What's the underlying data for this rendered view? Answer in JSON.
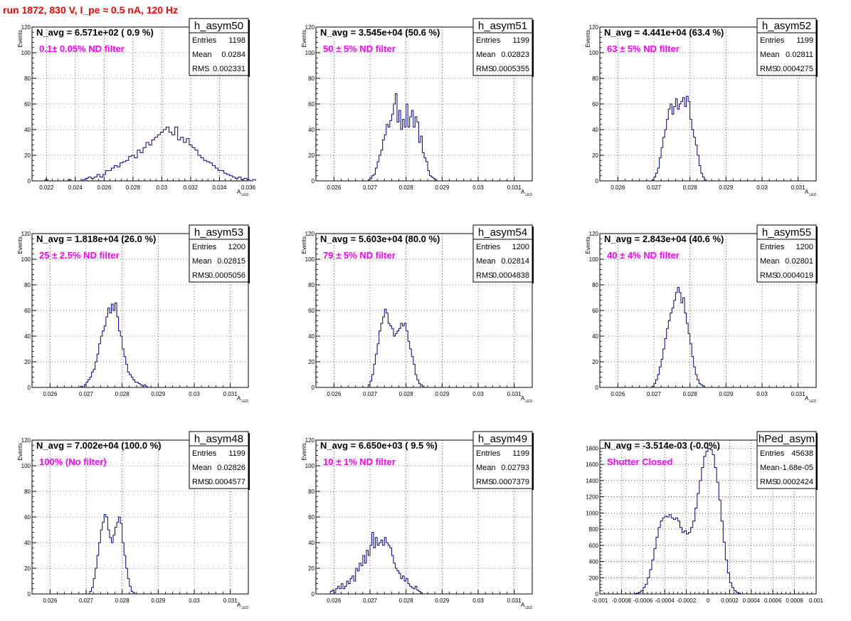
{
  "run_title": "run 1872,   830 V, I_pe ≈ 0.5 nA, 120 Hz",
  "colors": {
    "histogram": "#000080",
    "annotation": "#ff00ff",
    "title": "#ff0000",
    "grid": "#000000"
  },
  "chart_data": [
    {
      "type": "histogram",
      "hist_name": "h_asym50",
      "navg_text": "N_avg = 6.571e+02 ( 0.9 %)",
      "filter_label": "0.1± 0.05% ND filter",
      "stats": [
        {
          "label": "Entries",
          "value": "1198"
        },
        {
          "label": "Mean",
          "value": "0.0284"
        },
        {
          "label": "RMS",
          "value": "0.002331"
        }
      ],
      "ylabel": "Events",
      "xlabel": "A",
      "xlabel_sub": "LED",
      "xlim": [
        0.021,
        0.036
      ],
      "ylim": [
        0,
        120
      ],
      "xticks": [
        0.022,
        0.024,
        0.026,
        0.028,
        0.03,
        0.032,
        0.034,
        0.036
      ],
      "xtick_labels": [
        "0.022",
        "0.024",
        "0.026",
        "0.028",
        "0.03",
        "0.032",
        "0.034",
        "0.036"
      ],
      "yticks": [
        0,
        20,
        40,
        60,
        80,
        100,
        120
      ],
      "ytick_labels": [
        "0",
        "20",
        "40",
        "60",
        "80",
        "100",
        "120"
      ],
      "bins": {
        "start": 0.0215,
        "width": 0.0002,
        "values": [
          0,
          0,
          1,
          0,
          0,
          0,
          0,
          0,
          0,
          0,
          1,
          0,
          0,
          0,
          0,
          1,
          2,
          3,
          2,
          3,
          5,
          3,
          5,
          8,
          8,
          10,
          12,
          11,
          14,
          15,
          16,
          19,
          20,
          18,
          24,
          22,
          26,
          30,
          28,
          32,
          34,
          36,
          38,
          40,
          42,
          38,
          36,
          42,
          32,
          34,
          30,
          33,
          28,
          26,
          24,
          20,
          18,
          16,
          15,
          14,
          12,
          10,
          8,
          8,
          6,
          5,
          4,
          3,
          2,
          3,
          1,
          2,
          1,
          0,
          1
        ]
      }
    },
    {
      "type": "histogram",
      "hist_name": "h_asym51",
      "navg_text": "N_avg = 3.545e+04 (50.6 %)",
      "filter_label": "50 ± 5% ND filter",
      "stats": [
        {
          "label": "Entries",
          "value": "1199"
        },
        {
          "label": "Mean",
          "value": "0.02823"
        },
        {
          "label": "RMS",
          "value": "0.0005355"
        }
      ],
      "ylabel": "Events",
      "xlabel": "A",
      "xlabel_sub": "LED",
      "xlim": [
        0.0255,
        0.0315
      ],
      "ylim": [
        0,
        120
      ],
      "xticks": [
        0.026,
        0.027,
        0.028,
        0.029,
        0.03,
        0.031
      ],
      "xtick_labels": [
        "0.026",
        "0.027",
        "0.028",
        "0.029",
        "0.03",
        "0.031"
      ],
      "yticks": [
        0,
        20,
        40,
        60,
        80,
        100,
        120
      ],
      "ytick_labels": [
        "0",
        "20",
        "40",
        "60",
        "80",
        "100",
        "120"
      ],
      "bins": {
        "start": 0.02695,
        "width": 5e-05,
        "values": [
          1,
          2,
          4,
          5,
          10,
          15,
          20,
          24,
          32,
          36,
          44,
          42,
          47,
          52,
          60,
          68,
          46,
          55,
          40,
          48,
          42,
          60,
          42,
          50,
          55,
          42,
          50,
          46,
          30,
          35,
          22,
          18,
          15,
          8,
          4,
          3,
          2,
          1,
          0
        ]
      }
    },
    {
      "type": "histogram",
      "hist_name": "h_asym52",
      "navg_text": "N_avg = 4.441e+04 (63.4 %)",
      "filter_label": "63 ± 5% ND filter",
      "stats": [
        {
          "label": "Entries",
          "value": "1199"
        },
        {
          "label": "Mean",
          "value": "0.02811"
        },
        {
          "label": "RMS",
          "value": "0.0004275"
        }
      ],
      "ylabel": "Events",
      "xlabel": "A",
      "xlabel_sub": "LED",
      "xlim": [
        0.0255,
        0.0315
      ],
      "ylim": [
        0,
        120
      ],
      "xticks": [
        0.026,
        0.027,
        0.028,
        0.029,
        0.03,
        0.031
      ],
      "xtick_labels": [
        "0.026",
        "0.027",
        "0.028",
        "0.029",
        "0.03",
        "0.031"
      ],
      "yticks": [
        0,
        20,
        40,
        60,
        80,
        100,
        120
      ],
      "ytick_labels": [
        "0",
        "20",
        "40",
        "60",
        "80",
        "100",
        "120"
      ],
      "bins": {
        "start": 0.02695,
        "width": 5e-05,
        "values": [
          1,
          3,
          6,
          10,
          18,
          26,
          34,
          40,
          48,
          56,
          60,
          52,
          58,
          64,
          56,
          60,
          62,
          65,
          58,
          66,
          62,
          48,
          40,
          34,
          28,
          20,
          12,
          6,
          3,
          1,
          0
        ]
      }
    },
    {
      "type": "histogram",
      "hist_name": "h_asym53",
      "navg_text": "N_avg = 1.818e+04 (26.0 %)",
      "filter_label": "25 ± 2.5% ND filter",
      "stats": [
        {
          "label": "Entries",
          "value": "1200"
        },
        {
          "label": "Mean",
          "value": "0.02815"
        },
        {
          "label": "RMS",
          "value": "0.0005056"
        }
      ],
      "ylabel": "Events",
      "xlabel": "A",
      "xlabel_sub": "LED",
      "xlim": [
        0.0255,
        0.0315
      ],
      "ylim": [
        0,
        120
      ],
      "xticks": [
        0.026,
        0.027,
        0.028,
        0.029,
        0.03,
        0.031
      ],
      "xtick_labels": [
        "0.026",
        "0.027",
        "0.028",
        "0.029",
        "0.03",
        "0.031"
      ],
      "yticks": [
        0,
        20,
        40,
        60,
        80,
        100,
        120
      ],
      "ytick_labels": [
        "0",
        "20",
        "40",
        "60",
        "80",
        "100",
        "120"
      ],
      "bins": {
        "start": 0.02685,
        "width": 5e-05,
        "values": [
          1,
          0,
          2,
          4,
          6,
          8,
          12,
          14,
          20,
          26,
          34,
          40,
          44,
          48,
          55,
          62,
          58,
          65,
          60,
          66,
          55,
          44,
          40,
          30,
          24,
          18,
          12,
          10,
          8,
          6,
          4,
          4,
          3,
          2,
          1,
          2,
          1
        ]
      }
    },
    {
      "type": "histogram",
      "hist_name": "h_asym54",
      "navg_text": "N_avg = 5.603e+04 (80.0 %)",
      "filter_label": "79 ± 5% ND filter",
      "stats": [
        {
          "label": "Entries",
          "value": "1200"
        },
        {
          "label": "Mean",
          "value": "0.02814"
        },
        {
          "label": "RMS",
          "value": "0.0004838"
        }
      ],
      "ylabel": "Events",
      "xlabel": "A",
      "xlabel_sub": "LED",
      "xlim": [
        0.0255,
        0.0315
      ],
      "ylim": [
        0,
        120
      ],
      "xticks": [
        0.026,
        0.027,
        0.028,
        0.029,
        0.03,
        0.031
      ],
      "xtick_labels": [
        "0.026",
        "0.027",
        "0.028",
        "0.029",
        "0.03",
        "0.031"
      ],
      "yticks": [
        0,
        20,
        40,
        60,
        80,
        100,
        120
      ],
      "ytick_labels": [
        "0",
        "20",
        "40",
        "60",
        "80",
        "100",
        "120"
      ],
      "bins": {
        "start": 0.02695,
        "width": 5e-05,
        "values": [
          2,
          5,
          10,
          18,
          26,
          34,
          44,
          50,
          55,
          61,
          58,
          50,
          48,
          46,
          40,
          42,
          44,
          46,
          50,
          48,
          50,
          44,
          36,
          30,
          24,
          18,
          10,
          6,
          3,
          2,
          1
        ]
      }
    },
    {
      "type": "histogram",
      "hist_name": "h_asym55",
      "navg_text": "N_avg = 2.843e+04 (40.6 %)",
      "filter_label": "40 ± 4% ND filter",
      "stats": [
        {
          "label": "Entries",
          "value": "1200"
        },
        {
          "label": "Mean",
          "value": "0.02801"
        },
        {
          "label": "RMS",
          "value": "0.0004019"
        }
      ],
      "ylabel": "Events",
      "xlabel": "A",
      "xlabel_sub": "LED",
      "xlim": [
        0.0255,
        0.0315
      ],
      "ylim": [
        0,
        120
      ],
      "xticks": [
        0.026,
        0.027,
        0.028,
        0.029,
        0.03,
        0.031
      ],
      "xtick_labels": [
        "0.026",
        "0.027",
        "0.028",
        "0.029",
        "0.03",
        "0.031"
      ],
      "yticks": [
        0,
        20,
        40,
        60,
        80,
        100,
        120
      ],
      "ytick_labels": [
        "0",
        "20",
        "40",
        "60",
        "80",
        "100",
        "120"
      ],
      "bins": {
        "start": 0.02695,
        "width": 5e-05,
        "values": [
          1,
          3,
          6,
          10,
          16,
          22,
          30,
          38,
          46,
          52,
          58,
          62,
          68,
          74,
          78,
          74,
          66,
          70,
          58,
          50,
          42,
          34,
          24,
          16,
          10,
          6,
          3,
          2,
          1,
          0
        ]
      }
    },
    {
      "type": "histogram",
      "hist_name": "h_asym48",
      "navg_text": "N_avg = 7.002e+04 (100.0 %)",
      "filter_label": "100% (No filter)",
      "stats": [
        {
          "label": "Entries",
          "value": "1199"
        },
        {
          "label": "Mean",
          "value": "0.02826"
        },
        {
          "label": "RMS",
          "value": "0.0004577"
        }
      ],
      "ylabel": "Events",
      "xlabel": "A",
      "xlabel_sub": "LED",
      "xlim": [
        0.0255,
        0.0315
      ],
      "ylim": [
        0,
        120
      ],
      "xticks": [
        0.026,
        0.027,
        0.028,
        0.029,
        0.03,
        0.031
      ],
      "xtick_labels": [
        "0.026",
        "0.027",
        "0.028",
        "0.029",
        "0.03",
        "0.031"
      ],
      "yticks": [
        0,
        20,
        40,
        60,
        80,
        100,
        120
      ],
      "ytick_labels": [
        "0",
        "20",
        "40",
        "60",
        "80",
        "100",
        "120"
      ],
      "bins": {
        "start": 0.0271,
        "width": 5e-05,
        "values": [
          2,
          5,
          12,
          20,
          30,
          40,
          50,
          56,
          62,
          60,
          50,
          44,
          40,
          46,
          52,
          56,
          60,
          55,
          40,
          30,
          20,
          12,
          6,
          2,
          1
        ]
      }
    },
    {
      "type": "histogram",
      "hist_name": "h_asym49",
      "navg_text": "N_avg = 6.650e+03 ( 9.5 %)",
      "filter_label": "10 ± 1% ND filter",
      "stats": [
        {
          "label": "Entries",
          "value": "1199"
        },
        {
          "label": "Mean",
          "value": "0.02793"
        },
        {
          "label": "RMS",
          "value": "0.0007379"
        }
      ],
      "ylabel": "Events",
      "xlabel": "A",
      "xlabel_sub": "LED",
      "xlim": [
        0.0255,
        0.0315
      ],
      "ylim": [
        0,
        120
      ],
      "xticks": [
        0.026,
        0.027,
        0.028,
        0.029,
        0.03,
        0.031
      ],
      "xtick_labels": [
        "0.026",
        "0.027",
        "0.028",
        "0.029",
        "0.03",
        "0.031"
      ],
      "yticks": [
        0,
        20,
        40,
        60,
        80,
        100,
        120
      ],
      "ytick_labels": [
        "0",
        "20",
        "40",
        "60",
        "80",
        "100",
        "120"
      ],
      "bins": {
        "start": 0.0259,
        "width": 5e-05,
        "values": [
          2,
          3,
          1,
          4,
          6,
          4,
          8,
          4,
          6,
          10,
          8,
          12,
          14,
          10,
          20,
          18,
          24,
          22,
          30,
          24,
          34,
          30,
          38,
          48,
          36,
          44,
          38,
          40,
          42,
          38,
          44,
          40,
          38,
          36,
          30,
          24,
          20,
          18,
          16,
          12,
          14,
          10,
          12,
          8,
          6,
          5,
          4,
          6,
          3,
          2,
          1
        ]
      }
    },
    {
      "type": "histogram",
      "hist_name": "hPed_asym",
      "navg_text": "N_avg = -3.514e-03 (-0.0%)",
      "filter_label": "Shutter Closed",
      "stats": [
        {
          "label": "Entries",
          "value": "45638"
        },
        {
          "label": "Mean",
          "value": "-1.68e-05"
        },
        {
          "label": "RMS",
          "value": "0.0002424"
        }
      ],
      "ylabel": "",
      "xlabel": "",
      "xlabel_sub": "",
      "xlim": [
        -0.001,
        0.001
      ],
      "ylim": [
        0,
        1900
      ],
      "xticks": [
        -0.001,
        -0.0008,
        -0.0006,
        -0.0004,
        -0.0002,
        0,
        0.0002,
        0.0004,
        0.0006,
        0.0008,
        0.001
      ],
      "xtick_labels": [
        "-0.001",
        "-0.0008",
        "-0.0006",
        "-0.0004",
        "-0.0002",
        "0",
        "0.0002",
        "0.0004",
        "0.0006",
        "0.0008",
        "0.001"
      ],
      "yticks": [
        0,
        200,
        400,
        600,
        800,
        1000,
        1200,
        1400,
        1600,
        1800
      ],
      "ytick_labels": [
        "0",
        "200",
        "400",
        "600",
        "800",
        "1000",
        "1200",
        "1400",
        "1600",
        "1800"
      ],
      "bins": {
        "start": -0.00068,
        "width": 2e-05,
        "values": [
          5,
          10,
          20,
          40,
          80,
          120,
          200,
          300,
          420,
          560,
          700,
          820,
          900,
          940,
          960,
          950,
          980,
          940,
          920,
          940,
          900,
          820,
          760,
          780,
          740,
          760,
          820,
          900,
          1060,
          1240,
          1400,
          1560,
          1700,
          1760,
          1800,
          1780,
          1720,
          1560,
          1380,
          1160,
          900,
          640,
          420,
          260,
          140,
          80,
          40,
          20,
          10
        ]
      }
    }
  ]
}
